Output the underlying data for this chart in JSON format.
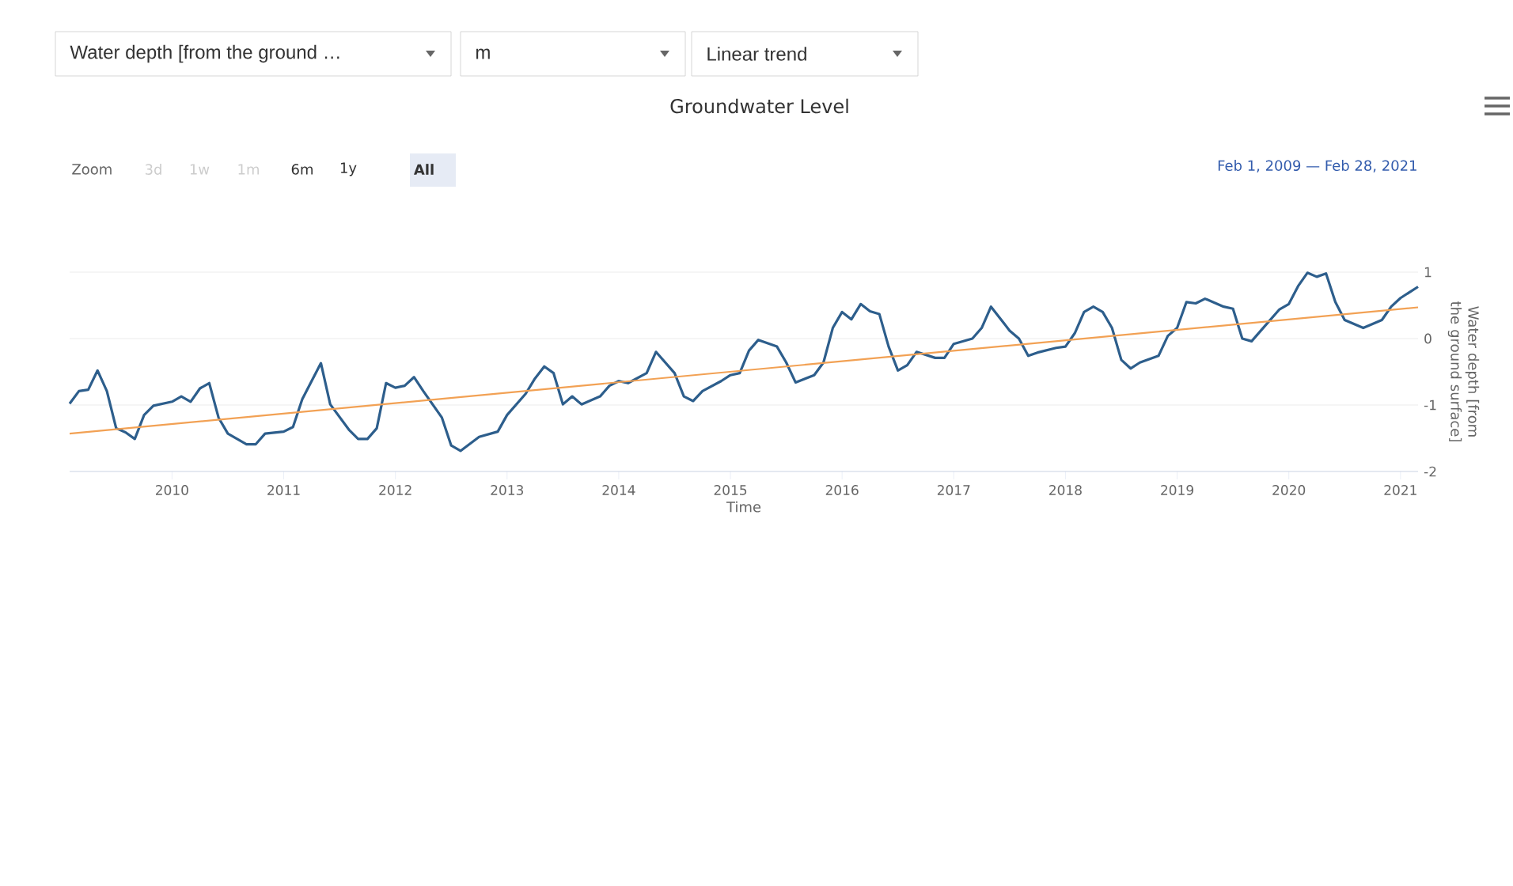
{
  "chart_data": {
    "type": "line",
    "title": "Groundwater Level",
    "xlabel": "Time",
    "ylabel": "Water depth [from the ground surface]",
    "xlim": [
      "2009-02-01",
      "2021-02-28"
    ],
    "xticks": [
      "2010",
      "2011",
      "2012",
      "2013",
      "2014",
      "2015",
      "2016",
      "2017",
      "2018",
      "2019",
      "2020",
      "2021"
    ],
    "ylim": [
      -2,
      1
    ],
    "yticks": [
      -2,
      -1,
      0,
      1
    ],
    "grid": "y",
    "annotations": [
      "Water depth [from the ground …",
      "m",
      "Linear trend",
      "Zoom",
      "3d",
      "1w",
      "1m",
      "6m",
      "1y",
      "All",
      "Feb 1, 2009 — Feb 28, 2021"
    ],
    "series": [
      {
        "color": "#2d5e8c",
        "x": [
          "2009-02-01",
          "2009-03",
          "2009-04",
          "2009-05",
          "2009-06",
          "2009-07",
          "2009-08",
          "2009-09",
          "2009-10",
          "2009-11",
          "2010-01",
          "2010-02",
          "2010-03",
          "2010-04",
          "2010-05",
          "2010-06",
          "2010-07",
          "2010-09",
          "2010-10",
          "2010-11",
          "2011-01",
          "2011-02",
          "2011-03",
          "2011-05",
          "2011-06",
          "2011-08",
          "2011-09",
          "2011-10",
          "2011-11",
          "2011-12",
          "2012-01",
          "2012-02",
          "2012-03",
          "2012-04",
          "2012-06",
          "2012-07",
          "2012-08",
          "2012-10",
          "2012-12",
          "2013-01",
          "2013-03",
          "2013-04",
          "2013-05",
          "2013-06",
          "2013-07",
          "2013-08",
          "2013-09",
          "2013-11",
          "2013-12",
          "2014-01",
          "2014-02",
          "2014-04",
          "2014-05",
          "2014-07",
          "2014-08",
          "2014-09",
          "2014-10",
          "2014-12",
          "2015-01",
          "2015-02",
          "2015-03",
          "2015-04",
          "2015-06",
          "2015-07",
          "2015-08",
          "2015-10",
          "2015-11",
          "2015-12",
          "2016-01",
          "2016-02",
          "2016-03",
          "2016-04",
          "2016-05",
          "2016-06",
          "2016-07",
          "2016-08",
          "2016-09",
          "2016-11",
          "2016-12",
          "2017-01",
          "2017-03",
          "2017-04",
          "2017-05",
          "2017-07",
          "2017-08",
          "2017-09",
          "2017-10",
          "2017-12",
          "2018-01",
          "2018-02",
          "2018-03",
          "2018-04",
          "2018-05",
          "2018-06",
          "2018-07",
          "2018-08",
          "2018-09",
          "2018-11",
          "2018-12",
          "2019-01",
          "2019-02",
          "2019-03",
          "2019-04",
          "2019-06",
          "2019-07",
          "2019-08",
          "2019-09",
          "2019-10",
          "2019-12",
          "2020-01",
          "2020-02",
          "2020-03",
          "2020-04",
          "2020-05",
          "2020-06",
          "2020-07",
          "2020-09",
          "2020-11",
          "2020-12",
          "2021-01",
          "2021-02-28"
        ],
        "values": [
          -0.98,
          -0.79,
          -0.77,
          -0.48,
          -0.79,
          -1.35,
          -1.41,
          -1.51,
          -1.15,
          -1.01,
          -0.95,
          -0.87,
          -0.95,
          -0.75,
          -0.67,
          -1.19,
          -1.43,
          -1.59,
          -1.59,
          -1.43,
          -1.4,
          -1.33,
          -0.91,
          -0.37,
          -0.99,
          -1.37,
          -1.51,
          -1.51,
          -1.35,
          -0.67,
          -0.74,
          -0.71,
          -0.58,
          -0.79,
          -1.19,
          -1.61,
          -1.69,
          -1.48,
          -1.4,
          -1.15,
          -0.83,
          -0.6,
          -0.42,
          -0.52,
          -0.99,
          -0.87,
          -0.99,
          -0.87,
          -0.71,
          -0.64,
          -0.67,
          -0.52,
          -0.2,
          -0.52,
          -0.87,
          -0.94,
          -0.79,
          -0.64,
          -0.55,
          -0.52,
          -0.18,
          -0.02,
          -0.12,
          -0.36,
          -0.66,
          -0.55,
          -0.36,
          0.16,
          0.4,
          0.29,
          0.52,
          0.41,
          0.37,
          -0.12,
          -0.48,
          -0.4,
          -0.2,
          -0.29,
          -0.29,
          -0.08,
          0.0,
          0.16,
          0.48,
          0.12,
          0.0,
          -0.26,
          -0.21,
          -0.14,
          -0.12,
          0.08,
          0.4,
          0.48,
          0.4,
          0.16,
          -0.32,
          -0.45,
          -0.36,
          -0.26,
          0.04,
          0.16,
          0.55,
          0.53,
          0.6,
          0.48,
          0.45,
          0.0,
          -0.04,
          0.12,
          0.44,
          0.52,
          0.79,
          0.99,
          0.93,
          0.98,
          0.55,
          0.28,
          0.16,
          0.28,
          0.48,
          0.61,
          0.78
        ]
      },
      {
        "color": "#f2a154",
        "x": [
          "2009-02-01",
          "2021-02-28"
        ],
        "values": [
          -1.43,
          0.47
        ]
      }
    ]
  }
}
